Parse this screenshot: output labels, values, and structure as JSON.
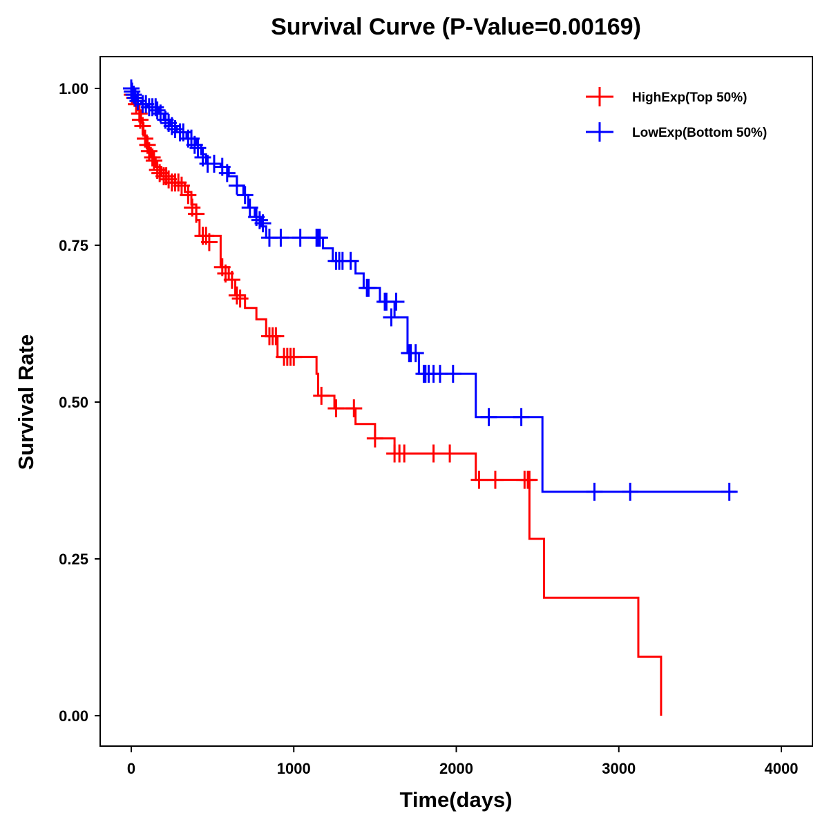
{
  "chart_data": {
    "type": "line",
    "subtype": "kaplan-meier-step",
    "title": "Survival Curve (P-Value=0.00169)",
    "xlabel": "Time(days)",
    "ylabel": "Survival Rate",
    "xlim": [
      -200,
      4200
    ],
    "ylim": [
      -0.05,
      1.05
    ],
    "xticks": [
      0,
      1000,
      2000,
      3000,
      4000
    ],
    "xtick_labels": [
      "0",
      "1000",
      "2000",
      "3000",
      "4000"
    ],
    "yticks": [
      0,
      0.25,
      0.5,
      0.75,
      1.0
    ],
    "ytick_labels": [
      "0.00",
      "0.25",
      "0.50",
      "0.75",
      "1.00"
    ],
    "grid": false,
    "legend_position": "top-right",
    "series": [
      {
        "name": "HighExp(Top 50%)",
        "color": "#FF0000",
        "steps": [
          [
            0,
            1.0
          ],
          [
            10,
            0.985
          ],
          [
            40,
            0.965
          ],
          [
            60,
            0.945
          ],
          [
            75,
            0.925
          ],
          [
            95,
            0.905
          ],
          [
            120,
            0.89
          ],
          [
            150,
            0.875
          ],
          [
            185,
            0.86
          ],
          [
            250,
            0.85
          ],
          [
            330,
            0.835
          ],
          [
            370,
            0.815
          ],
          [
            400,
            0.79
          ],
          [
            420,
            0.765
          ],
          [
            550,
            0.715
          ],
          [
            600,
            0.695
          ],
          [
            640,
            0.67
          ],
          [
            700,
            0.65
          ],
          [
            770,
            0.632
          ],
          [
            830,
            0.605
          ],
          [
            900,
            0.572
          ],
          [
            1140,
            0.545
          ],
          [
            1150,
            0.51
          ],
          [
            1250,
            0.49
          ],
          [
            1380,
            0.465
          ],
          [
            1500,
            0.442
          ],
          [
            1620,
            0.418
          ],
          [
            2120,
            0.376
          ],
          [
            2450,
            0.282
          ],
          [
            2540,
            0.188
          ],
          [
            3120,
            0.094
          ],
          [
            3260,
            0.0
          ]
        ],
        "censored": [
          [
            5,
            0.99
          ],
          [
            20,
            0.985
          ],
          [
            30,
            0.975
          ],
          [
            50,
            0.96
          ],
          [
            55,
            0.95
          ],
          [
            70,
            0.94
          ],
          [
            85,
            0.92
          ],
          [
            100,
            0.91
          ],
          [
            110,
            0.9
          ],
          [
            130,
            0.89
          ],
          [
            140,
            0.885
          ],
          [
            160,
            0.87
          ],
          [
            175,
            0.865
          ],
          [
            200,
            0.86
          ],
          [
            215,
            0.86
          ],
          [
            230,
            0.855
          ],
          [
            250,
            0.85
          ],
          [
            270,
            0.85
          ],
          [
            290,
            0.85
          ],
          [
            310,
            0.845
          ],
          [
            350,
            0.83
          ],
          [
            375,
            0.81
          ],
          [
            400,
            0.8
          ],
          [
            440,
            0.765
          ],
          [
            460,
            0.765
          ],
          [
            480,
            0.755
          ],
          [
            560,
            0.715
          ],
          [
            580,
            0.705
          ],
          [
            620,
            0.695
          ],
          [
            650,
            0.67
          ],
          [
            670,
            0.665
          ],
          [
            850,
            0.605
          ],
          [
            870,
            0.605
          ],
          [
            890,
            0.605
          ],
          [
            940,
            0.572
          ],
          [
            960,
            0.572
          ],
          [
            980,
            0.572
          ],
          [
            1000,
            0.572
          ],
          [
            1170,
            0.51
          ],
          [
            1260,
            0.49
          ],
          [
            1370,
            0.49
          ],
          [
            1500,
            0.442
          ],
          [
            1620,
            0.418
          ],
          [
            1650,
            0.418
          ],
          [
            1680,
            0.418
          ],
          [
            1860,
            0.418
          ],
          [
            1960,
            0.418
          ],
          [
            2140,
            0.376
          ],
          [
            2240,
            0.376
          ],
          [
            2420,
            0.376
          ],
          [
            2440,
            0.376
          ],
          [
            2450,
            0.376
          ]
        ]
      },
      {
        "name": "LowExp(Bottom 50%)",
        "color": "#0000FF",
        "steps": [
          [
            0,
            1.0
          ],
          [
            10,
            0.99
          ],
          [
            30,
            0.98
          ],
          [
            60,
            0.975
          ],
          [
            100,
            0.97
          ],
          [
            170,
            0.96
          ],
          [
            200,
            0.95
          ],
          [
            240,
            0.94
          ],
          [
            280,
            0.93
          ],
          [
            340,
            0.92
          ],
          [
            400,
            0.91
          ],
          [
            430,
            0.895
          ],
          [
            460,
            0.88
          ],
          [
            550,
            0.875
          ],
          [
            600,
            0.86
          ],
          [
            650,
            0.845
          ],
          [
            690,
            0.83
          ],
          [
            720,
            0.81
          ],
          [
            760,
            0.795
          ],
          [
            800,
            0.78
          ],
          [
            830,
            0.762
          ],
          [
            1180,
            0.745
          ],
          [
            1240,
            0.725
          ],
          [
            1380,
            0.705
          ],
          [
            1430,
            0.682
          ],
          [
            1530,
            0.66
          ],
          [
            1620,
            0.635
          ],
          [
            1700,
            0.578
          ],
          [
            1770,
            0.545
          ],
          [
            2120,
            0.476
          ],
          [
            2530,
            0.357
          ]
        ],
        "censored": [
          [
            0,
            1.0
          ],
          [
            5,
            0.995
          ],
          [
            15,
            0.99
          ],
          [
            25,
            0.985
          ],
          [
            40,
            0.98
          ],
          [
            70,
            0.975
          ],
          [
            90,
            0.975
          ],
          [
            110,
            0.97
          ],
          [
            130,
            0.97
          ],
          [
            150,
            0.97
          ],
          [
            160,
            0.965
          ],
          [
            180,
            0.96
          ],
          [
            210,
            0.95
          ],
          [
            230,
            0.945
          ],
          [
            250,
            0.94
          ],
          [
            270,
            0.935
          ],
          [
            300,
            0.93
          ],
          [
            320,
            0.93
          ],
          [
            350,
            0.92
          ],
          [
            370,
            0.92
          ],
          [
            390,
            0.91
          ],
          [
            410,
            0.905
          ],
          [
            440,
            0.89
          ],
          [
            470,
            0.88
          ],
          [
            510,
            0.88
          ],
          [
            560,
            0.875
          ],
          [
            590,
            0.865
          ],
          [
            650,
            0.845
          ],
          [
            700,
            0.83
          ],
          [
            730,
            0.81
          ],
          [
            770,
            0.795
          ],
          [
            790,
            0.79
          ],
          [
            810,
            0.785
          ],
          [
            850,
            0.762
          ],
          [
            920,
            0.762
          ],
          [
            1040,
            0.762
          ],
          [
            1140,
            0.762
          ],
          [
            1150,
            0.762
          ],
          [
            1160,
            0.762
          ],
          [
            1260,
            0.725
          ],
          [
            1280,
            0.725
          ],
          [
            1300,
            0.725
          ],
          [
            1350,
            0.725
          ],
          [
            1450,
            0.682
          ],
          [
            1460,
            0.682
          ],
          [
            1560,
            0.66
          ],
          [
            1570,
            0.66
          ],
          [
            1630,
            0.66
          ],
          [
            1600,
            0.635
          ],
          [
            1710,
            0.578
          ],
          [
            1720,
            0.578
          ],
          [
            1750,
            0.578
          ],
          [
            1800,
            0.545
          ],
          [
            1810,
            0.545
          ],
          [
            1830,
            0.545
          ],
          [
            1860,
            0.545
          ],
          [
            1900,
            0.545
          ],
          [
            1980,
            0.545
          ],
          [
            2200,
            0.476
          ],
          [
            2400,
            0.476
          ],
          [
            2850,
            0.357
          ],
          [
            3070,
            0.357
          ],
          [
            3680,
            0.357
          ]
        ],
        "curve_end": 3720
      }
    ]
  }
}
